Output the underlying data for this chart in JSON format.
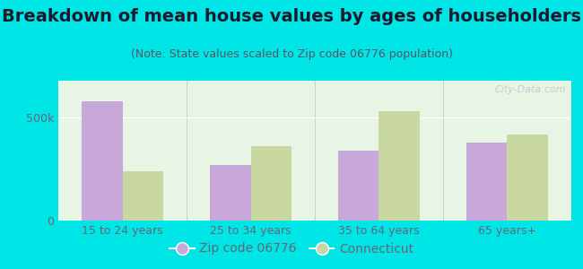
{
  "title": "Breakdown of mean house values by ages of householders",
  "subtitle": "(Note: State values scaled to Zip code 06776 population)",
  "categories": [
    "15 to 24 years",
    "25 to 34 years",
    "35 to 64 years",
    "65 years+"
  ],
  "zip_values": [
    580000,
    270000,
    340000,
    380000
  ],
  "ct_values": [
    240000,
    360000,
    530000,
    420000
  ],
  "zip_color": "#c8a8d8",
  "ct_color": "#c8d8a0",
  "background_outer": "#00e5e5",
  "background_inner": "#e8f5e4",
  "ylim": [
    0,
    680000
  ],
  "yticks": [
    0,
    500000
  ],
  "ytick_labels": [
    "0",
    "500k"
  ],
  "legend_zip_label": "Zip code 06776",
  "legend_ct_label": "Connecticut",
  "bar_width": 0.32,
  "title_fontsize": 14,
  "subtitle_fontsize": 9,
  "tick_fontsize": 9,
  "legend_fontsize": 10,
  "title_color": "#1a1a2e",
  "subtitle_color": "#555566",
  "tick_color": "#666677"
}
